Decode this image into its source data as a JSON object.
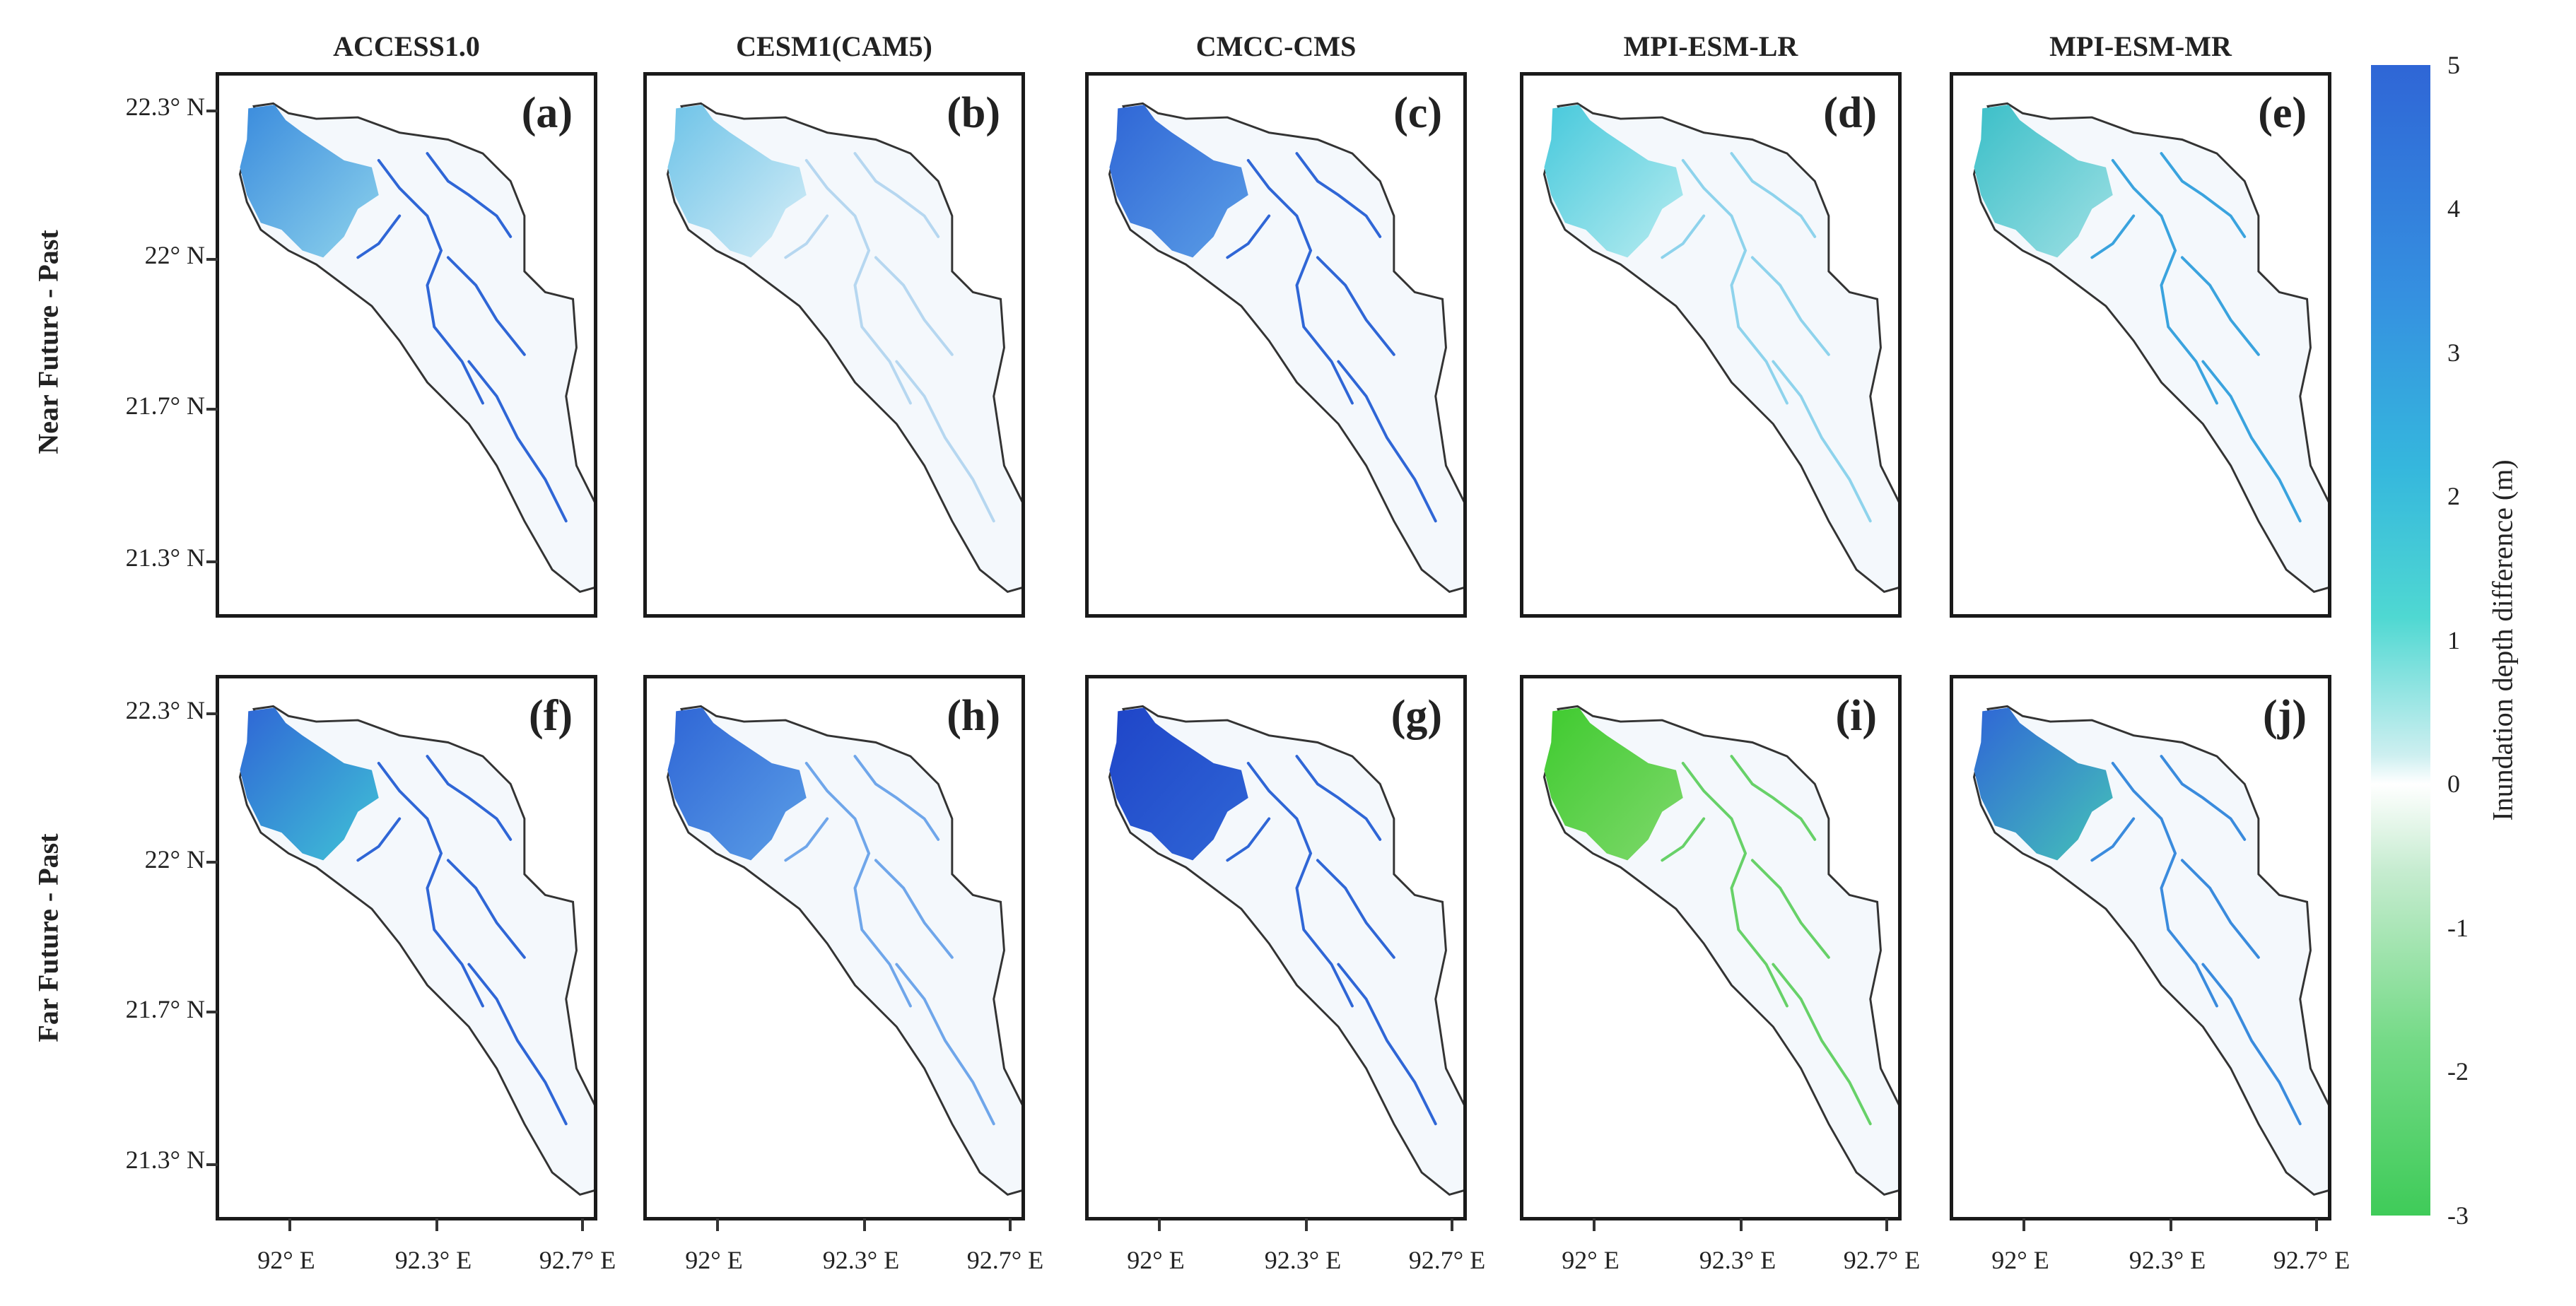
{
  "column_titles": [
    "ACCESS1.0",
    "CESM1(CAM5)",
    "CMCC-CMS",
    "MPI-ESM-LR",
    "MPI-ESM-MR"
  ],
  "row_titles": [
    "Near Future - Past",
    "Far Future - Past"
  ],
  "lat_labels": [
    "22.3° N",
    "22° N",
    "21.7° N",
    "21.3° N"
  ],
  "lon_labels": [
    "92° E",
    "92.3° E",
    "92.7° E"
  ],
  "panels": [
    {
      "label": "(a)",
      "fill_dark": "#3a8bdd",
      "fill_light": "#8ed3ec",
      "river": "#2f66d6"
    },
    {
      "label": "(b)",
      "fill_dark": "#6ec3e8",
      "fill_light": "#d6eef7",
      "river": "#b6d7f0"
    },
    {
      "label": "(c)",
      "fill_dark": "#2f66d6",
      "fill_light": "#5b9ee6",
      "river": "#2f66d6"
    },
    {
      "label": "(d)",
      "fill_dark": "#47c9dc",
      "fill_light": "#b8ecf0",
      "river": "#8ed3ec"
    },
    {
      "label": "(e)",
      "fill_dark": "#3bbfc8",
      "fill_light": "#9fe0e4",
      "river": "#3aa3de"
    },
    {
      "label": "(f)",
      "fill_dark": "#2f66d6",
      "fill_light": "#40c3d6",
      "river": "#2f66d6"
    },
    {
      "label": "(h)",
      "fill_dark": "#2f66d6",
      "fill_light": "#5b9ee6",
      "river": "#6fa6ea"
    },
    {
      "label": "(g)",
      "fill_dark": "#1f45c8",
      "fill_light": "#2f66d6",
      "river": "#2f66d6"
    },
    {
      "label": "(i)",
      "fill_dark": "#3fcb2f",
      "fill_light": "#7fd86c",
      "river": "#67d168"
    },
    {
      "label": "(j)",
      "fill_dark": "#2f66d6",
      "fill_light": "#45c3b8",
      "river": "#3a8bdd"
    }
  ],
  "colorbar": {
    "title": "Inundation depth difference (m)",
    "ticks": [
      "5",
      "4",
      "3",
      "2",
      "1",
      "0",
      "-1",
      "-2",
      "-3"
    ],
    "max_color": "#2f66d6",
    "mid_color": "#ffffff",
    "min_color": "#3fcb59"
  }
}
